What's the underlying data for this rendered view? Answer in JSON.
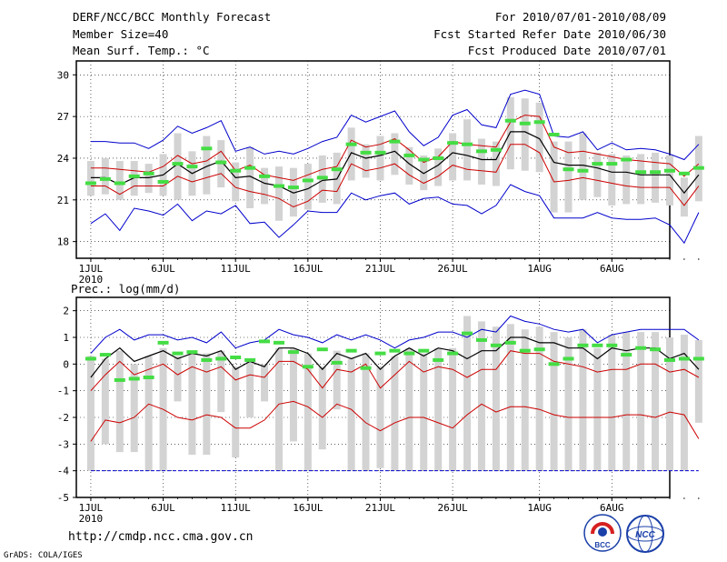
{
  "header": {
    "left": [
      "DERF/NCC/BCC Monthly Forecast",
      "Member Size=40",
      "Mean Surf. Temp.: °C"
    ],
    "right": [
      "For 2010/07/01-2010/08/09",
      "Fcst Started Refer Date 2010/06/30",
      "Fcst Produced Date 2010/07/01"
    ]
  },
  "precip_title": "Prec.: log(mm/d)",
  "footer": {
    "url": "http://cmdp.ncc.cma.gov.cn",
    "credit": "GrADS: COLA/IGES"
  },
  "logos": {
    "bcc": "BCC",
    "ncc": "NCC"
  },
  "colors": {
    "envelope": "#0000cc",
    "spread": "#cc0000",
    "mean": "#000000",
    "obs": "#44dd44",
    "box": "#d3d3d3",
    "floor": "#0000cc"
  },
  "chart_data": [
    {
      "type": "line",
      "title": "Mean Surf. Temp.: °C",
      "x_ticks": [
        {
          "day": 1,
          "label": "1JUL",
          "sub": "2010"
        },
        {
          "day": 6,
          "label": "6JUL"
        },
        {
          "day": 11,
          "label": "11JUL"
        },
        {
          "day": 16,
          "label": "16JUL"
        },
        {
          "day": 21,
          "label": "21JUL"
        },
        {
          "day": 26,
          "label": "26JUL"
        },
        {
          "day": 32,
          "label": "1AUG"
        },
        {
          "day": 37,
          "label": "6AUG"
        }
      ],
      "xlim": [
        0,
        41
      ],
      "ylim": [
        16.8,
        31
      ],
      "y_ticks": [
        18,
        21,
        24,
        27,
        30
      ],
      "series": [
        {
          "name": "max",
          "values": [
            25.2,
            25.2,
            25.1,
            25.1,
            24.7,
            25.3,
            26.3,
            25.8,
            26.2,
            26.7,
            24.5,
            24.8,
            24.3,
            24.5,
            24.3,
            24.7,
            25.2,
            25.5,
            27.1,
            26.6,
            27.0,
            27.4,
            25.9,
            24.9,
            25.5,
            27.1,
            27.5,
            26.4,
            26.2,
            28.6,
            28.9,
            28.6,
            25.6,
            25.5,
            25.9,
            24.6,
            25.1,
            24.6,
            24.7,
            24.6,
            24.3,
            23.9,
            25.0
          ]
        },
        {
          "name": "upper",
          "values": [
            23.3,
            23.3,
            23.2,
            23.1,
            23.0,
            23.4,
            24.2,
            23.6,
            23.8,
            24.5,
            23.1,
            23.5,
            22.8,
            22.6,
            22.4,
            22.8,
            23.2,
            23.4,
            25.3,
            24.8,
            25.0,
            25.4,
            24.6,
            23.7,
            24.1,
            25.2,
            25.0,
            24.9,
            24.8,
            26.6,
            27.1,
            27.0,
            24.8,
            24.4,
            24.5,
            24.3,
            24.1,
            23.9,
            23.8,
            23.7,
            23.6,
            22.7,
            23.6
          ]
        },
        {
          "name": "mean",
          "values": [
            22.6,
            22.6,
            22.1,
            22.6,
            22.6,
            22.8,
            23.6,
            22.9,
            23.4,
            23.8,
            22.6,
            22.7,
            22.2,
            22.0,
            21.5,
            21.8,
            22.4,
            22.5,
            24.4,
            24.0,
            24.2,
            24.5,
            23.6,
            22.9,
            23.5,
            24.4,
            24.2,
            23.9,
            23.9,
            25.9,
            25.9,
            25.4,
            23.7,
            23.5,
            23.5,
            23.3,
            23.0,
            23.0,
            22.8,
            22.8,
            22.8,
            21.5,
            22.8
          ]
        },
        {
          "name": "lower",
          "values": [
            22.0,
            22.0,
            21.4,
            22.0,
            22.0,
            22.0,
            22.7,
            22.3,
            22.6,
            22.9,
            21.9,
            21.6,
            21.4,
            21.1,
            20.5,
            20.9,
            21.7,
            21.6,
            23.6,
            23.1,
            23.3,
            23.6,
            22.8,
            22.2,
            22.7,
            23.5,
            23.2,
            23.1,
            23.0,
            25.0,
            25.0,
            24.4,
            22.3,
            22.4,
            22.6,
            22.4,
            22.2,
            22.0,
            21.9,
            21.9,
            21.9,
            20.6,
            22.0
          ]
        },
        {
          "name": "min",
          "values": [
            19.3,
            20.0,
            18.8,
            20.4,
            20.2,
            19.9,
            20.7,
            19.5,
            20.2,
            20.0,
            20.6,
            19.3,
            19.4,
            18.3,
            19.2,
            20.2,
            20.1,
            20.1,
            21.5,
            21.0,
            21.3,
            21.5,
            20.7,
            21.1,
            21.2,
            20.7,
            20.6,
            20.0,
            20.6,
            22.1,
            21.6,
            21.3,
            19.7,
            19.7,
            19.7,
            20.1,
            19.7,
            19.6,
            19.6,
            19.7,
            19.2,
            17.9,
            20.1
          ]
        },
        {
          "name": "obs",
          "values": [
            22.2,
            22.5,
            22.2,
            22.7,
            22.9,
            22.3,
            23.6,
            23.4,
            24.7,
            23.7,
            23.1,
            23.3,
            22.7,
            22.0,
            21.9,
            22.4,
            22.6,
            23.2,
            25.0,
            24.4,
            24.4,
            25.2,
            24.2,
            23.9,
            24.0,
            25.1,
            25.0,
            24.5,
            24.6,
            26.7,
            26.5,
            26.6,
            25.7,
            23.2,
            23.1,
            23.6,
            23.6,
            23.9,
            23.0,
            23.0,
            23.1,
            22.9,
            23.3
          ]
        },
        {
          "name": "box_high",
          "values": [
            23.8,
            24.0,
            23.8,
            23.8,
            23.6,
            24.3,
            25.8,
            24.5,
            25.6,
            25.3,
            23.7,
            24.8,
            23.3,
            23.4,
            23.3,
            23.6,
            24.2,
            24.4,
            26.2,
            25.0,
            25.6,
            25.8,
            24.8,
            24.2,
            24.7,
            25.8,
            26.8,
            25.4,
            25.2,
            28.4,
            28.3,
            28.0,
            25.2,
            25.2,
            25.8,
            24.4,
            24.3,
            24.2,
            24.3,
            24.4,
            24.2,
            22.6,
            25.6
          ]
        },
        {
          "name": "box_low",
          "values": [
            21.3,
            21.4,
            21.0,
            21.3,
            21.5,
            21.3,
            21.0,
            21.3,
            21.4,
            21.9,
            20.9,
            20.4,
            20.7,
            19.5,
            19.8,
            20.3,
            20.8,
            20.7,
            22.4,
            22.6,
            22.4,
            22.8,
            22.1,
            21.7,
            22.0,
            22.4,
            22.4,
            22.1,
            22.0,
            23.2,
            23.1,
            23.0,
            20.1,
            20.1,
            21.0,
            21.2,
            20.6,
            20.7,
            20.7,
            20.8,
            20.6,
            19.8,
            20.9
          ]
        }
      ]
    },
    {
      "type": "line",
      "title": "Prec.: log(mm/d)",
      "x_ticks": [
        {
          "day": 1,
          "label": "1JUL",
          "sub": "2010"
        },
        {
          "day": 6,
          "label": "6JUL"
        },
        {
          "day": 11,
          "label": "11JUL"
        },
        {
          "day": 16,
          "label": "16JUL"
        },
        {
          "day": 21,
          "label": "21JUL"
        },
        {
          "day": 26,
          "label": "26JUL"
        },
        {
          "day": 32,
          "label": "1AUG"
        },
        {
          "day": 37,
          "label": "6AUG"
        }
      ],
      "xlim": [
        0,
        41
      ],
      "ylim": [
        -5,
        2.5
      ],
      "y_ticks": [
        -5,
        -4,
        -3,
        -2,
        -1,
        0,
        1,
        2
      ],
      "floor": -4,
      "series": [
        {
          "name": "max",
          "values": [
            0.4,
            1.0,
            1.3,
            0.9,
            1.1,
            1.1,
            0.9,
            1.0,
            0.8,
            1.2,
            0.6,
            0.8,
            0.9,
            1.3,
            1.1,
            1.0,
            0.8,
            1.1,
            0.9,
            1.1,
            0.9,
            0.6,
            0.9,
            1.0,
            1.2,
            1.2,
            1.0,
            1.3,
            1.2,
            1.8,
            1.6,
            1.5,
            1.3,
            1.2,
            1.3,
            0.8,
            1.1,
            1.2,
            1.3,
            1.3,
            1.3,
            1.3,
            0.9
          ]
        },
        {
          "name": "mean",
          "values": [
            -0.5,
            0.2,
            0.6,
            0.1,
            0.3,
            0.5,
            0.2,
            0.4,
            0.3,
            0.5,
            -0.2,
            0.1,
            -0.1,
            0.6,
            0.6,
            0.4,
            -0.2,
            0.4,
            0.2,
            0.4,
            -0.2,
            0.3,
            0.6,
            0.3,
            0.6,
            0.5,
            0.2,
            0.5,
            0.5,
            1.0,
            1.0,
            0.8,
            0.8,
            0.6,
            0.6,
            0.2,
            0.6,
            0.5,
            0.6,
            0.6,
            0.2,
            0.4,
            -0.2
          ]
        },
        {
          "name": "upper",
          "values": [
            -1.0,
            -0.4,
            0.1,
            -0.4,
            -0.2,
            0.0,
            -0.4,
            -0.1,
            -0.3,
            -0.1,
            -0.6,
            -0.4,
            -0.5,
            0.1,
            0.1,
            -0.2,
            -0.9,
            -0.2,
            -0.3,
            0.0,
            -0.9,
            -0.4,
            0.1,
            -0.3,
            -0.1,
            -0.2,
            -0.5,
            -0.2,
            -0.2,
            0.5,
            0.4,
            0.4,
            0.1,
            0.0,
            -0.1,
            -0.3,
            -0.2,
            -0.2,
            0.0,
            0.0,
            -0.3,
            -0.2,
            -0.5
          ]
        },
        {
          "name": "lower",
          "values": [
            -2.9,
            -2.1,
            -2.2,
            -2.0,
            -1.5,
            -1.7,
            -2.0,
            -2.1,
            -1.9,
            -2.0,
            -2.4,
            -2.4,
            -2.1,
            -1.5,
            -1.4,
            -1.6,
            -2.0,
            -1.5,
            -1.7,
            -2.2,
            -2.5,
            -2.2,
            -2.0,
            -2.0,
            -2.2,
            -2.4,
            -1.9,
            -1.5,
            -1.8,
            -1.6,
            -1.6,
            -1.7,
            -1.9,
            -2.0,
            -2.0,
            -2.0,
            -2.0,
            -1.9,
            -1.9,
            -2.0,
            -1.8,
            -1.9,
            -2.8
          ]
        },
        {
          "name": "obs",
          "values": [
            0.2,
            0.35,
            -0.6,
            -0.55,
            -0.5,
            0.8,
            0.4,
            0.45,
            0.15,
            0.2,
            0.25,
            0.15,
            0.85,
            0.8,
            0.45,
            -0.1,
            0.55,
            0.05,
            0.5,
            -0.15,
            0.4,
            0.5,
            0.4,
            0.5,
            0.15,
            0.4,
            1.15,
            0.9,
            0.7,
            0.8,
            0.5,
            0.55,
            0.0,
            0.2,
            0.7,
            0.7,
            0.7,
            0.35,
            0.6,
            0.55,
            0.15,
            0.2,
            0.2
          ]
        },
        {
          "name": "box_high",
          "values": [
            0.3,
            0.2,
            0.5,
            0.0,
            0.3,
            0.6,
            0.3,
            0.4,
            0.4,
            0.5,
            -0.1,
            0.2,
            0.0,
            0.6,
            0.6,
            0.4,
            -0.1,
            0.5,
            0.2,
            0.4,
            -0.1,
            0.3,
            0.6,
            0.4,
            0.6,
            0.6,
            1.8,
            1.6,
            1.4,
            1.5,
            1.3,
            1.4,
            1.2,
            1.0,
            1.3,
            0.6,
            1.1,
            1.2,
            1.2,
            1.2,
            1.0,
            1.1,
            0.9
          ]
        },
        {
          "name": "box_low",
          "values": [
            -4.0,
            -3.0,
            -3.3,
            -3.3,
            -4.0,
            -4.0,
            -1.4,
            -3.4,
            -3.4,
            -1.8,
            -3.5,
            -2.0,
            -1.4,
            -4.0,
            -2.9,
            -4.0,
            -3.2,
            -1.7,
            -4.0,
            -4.0,
            -3.9,
            -4.0,
            -4.0,
            -4.0,
            -4.0,
            -4.0,
            -4.0,
            -4.0,
            -4.0,
            -4.0,
            -4.0,
            -4.0,
            -4.0,
            -4.0,
            -4.0,
            -4.0,
            -4.0,
            -4.0,
            -4.0,
            -4.0,
            -4.0,
            -4.0,
            -2.2
          ]
        }
      ]
    }
  ]
}
